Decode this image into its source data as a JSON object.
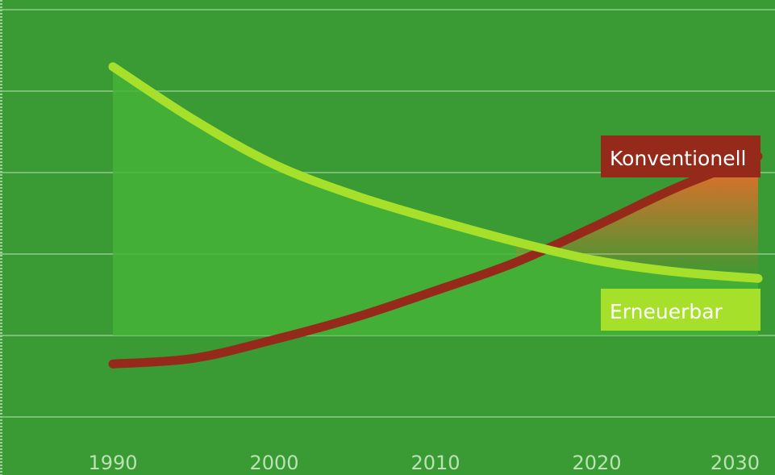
{
  "chart_data": {
    "type": "line",
    "title": "",
    "xlabel": "",
    "ylabel": "",
    "x": [
      1990,
      1995,
      2000,
      2005,
      2010,
      2015,
      2020,
      2025,
      2030
    ],
    "xticks": [
      "1990",
      "2000",
      "2010",
      "2020",
      "2030"
    ],
    "xlim": [
      1990,
      2030
    ],
    "ylim": [
      0,
      5
    ],
    "y_gridlines": [
      0,
      1,
      2,
      3,
      4,
      5
    ],
    "grid": true,
    "series": [
      {
        "name": "Erneuerbar",
        "color": "#a6e02a",
        "values": [
          4.3,
          3.65,
          3.1,
          2.72,
          2.42,
          2.15,
          1.92,
          1.78,
          1.7
        ]
      },
      {
        "name": "Konventionell",
        "color": "#962a1a",
        "values": [
          0.65,
          0.72,
          0.95,
          1.22,
          1.55,
          1.9,
          2.35,
          2.82,
          3.2
        ]
      }
    ],
    "legend_placement": "right, inline labels",
    "colors": {
      "background": "#3a9a33",
      "grid": "#8fcf87",
      "area_renewable": "#45b338",
      "area_conventional_top": "#f26a2a",
      "label_conventional_bg": "#962a1a",
      "label_renewable_bg": "#a6e02a"
    }
  }
}
